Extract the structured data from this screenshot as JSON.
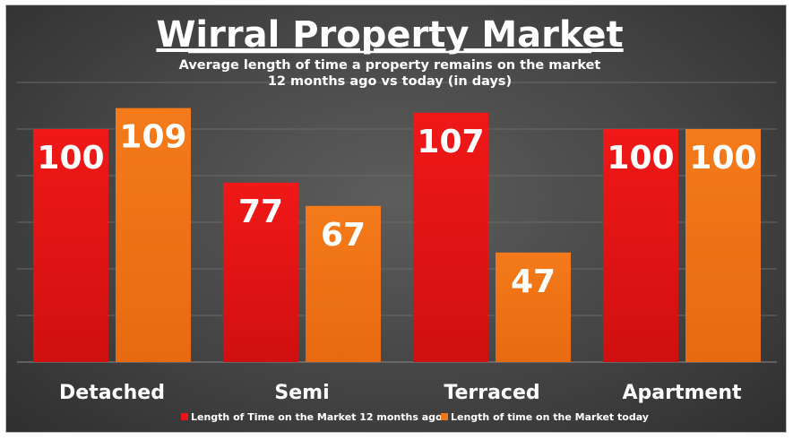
{
  "colors": {
    "series_12_months_ago": "#e8141a",
    "series_today": "#f07818",
    "gridline": "#6a6a6a",
    "text": "#ffffff"
  },
  "chart_data": {
    "type": "bar",
    "title": "Wirral Property Market",
    "subtitle_line1": "Average length of time a property remains on the market",
    "subtitle_line2": "12 months ago vs today (in days)",
    "categories": [
      "Detached",
      "Semi",
      "Terraced",
      "Apartment"
    ],
    "series": [
      {
        "name": "Length of Time on the Market 12 months ago",
        "values": [
          100,
          77,
          107,
          100
        ]
      },
      {
        "name": "Length of time on the Market today",
        "values": [
          109,
          67,
          47,
          100
        ]
      }
    ],
    "data_labels": true,
    "ylim": [
      0,
      120
    ],
    "grid": true,
    "legend_position": "bottom"
  }
}
